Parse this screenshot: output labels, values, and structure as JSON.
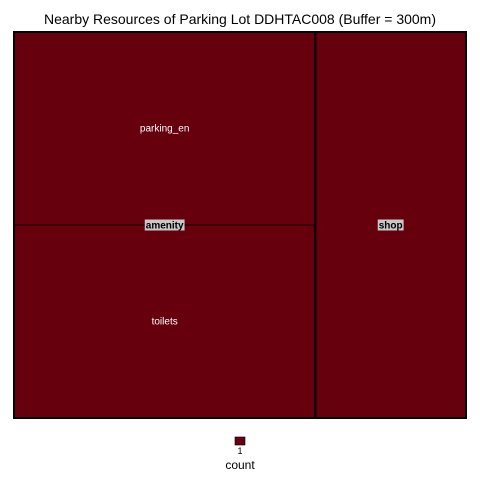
{
  "chart_data": {
    "type": "treemap",
    "title": "Nearby Resources of Parking Lot DDHTAC008 (Buffer = 300m)",
    "groups": [
      {
        "name": "amenity",
        "children": [
          {
            "name": "parking_en",
            "value": 1
          },
          {
            "name": "toilets",
            "value": 1
          }
        ]
      },
      {
        "name": "shop",
        "children": [
          {
            "name": "",
            "value": 1
          }
        ]
      }
    ],
    "fill_color": "#67000d",
    "border_color": "#000000",
    "label_bg_color": "#c8c8c8",
    "legend": {
      "title": "count",
      "placement": "bottom",
      "entries": [
        {
          "label": "1",
          "color": "#67000d"
        }
      ]
    }
  }
}
